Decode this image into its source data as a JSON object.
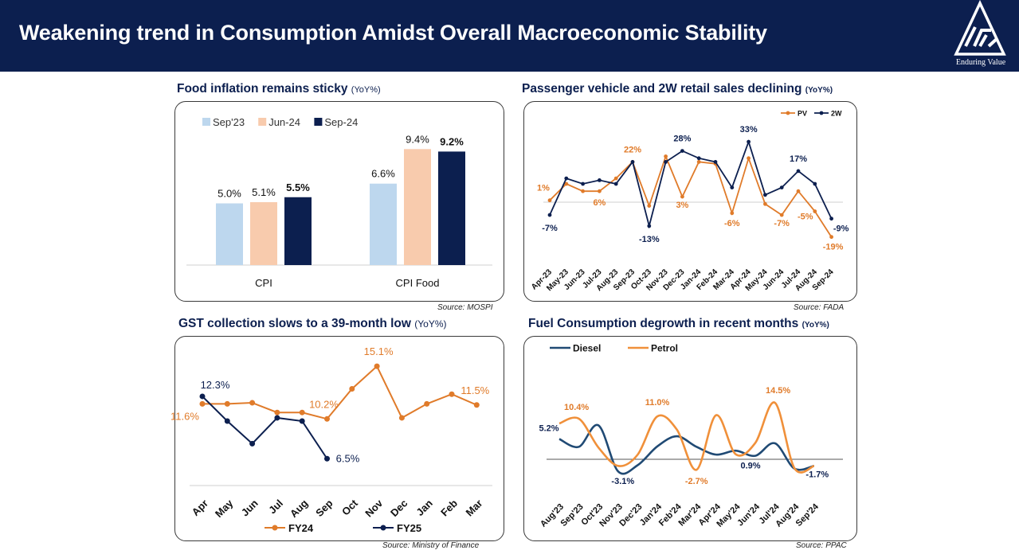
{
  "header": {
    "title": "Weakening trend in Consumption Amidst Overall Macroeconomic Stability",
    "logo_caption": "Enduring Value"
  },
  "colors": {
    "navy": "#0c1f4f",
    "orange": "#e07b2a",
    "light_blue": "#bdd7ee",
    "peach": "#f8cbad"
  },
  "panels": {
    "cpi": {
      "title": "Food inflation remains sticky",
      "subtitle": "(YoY%)",
      "source": "Source: MOSPI",
      "chart_data": {
        "type": "bar",
        "categories": [
          "CPI",
          "CPI Food"
        ],
        "series": [
          {
            "name": "Sep'23",
            "values": [
              5.0,
              6.6
            ],
            "labels": [
              "5.0%",
              "6.6%"
            ]
          },
          {
            "name": "Jun-24",
            "values": [
              5.1,
              9.4
            ],
            "labels": [
              "5.1%",
              "9.4%"
            ]
          },
          {
            "name": "Sep-24",
            "values": [
              5.5,
              9.2
            ],
            "labels": [
              "5.5%",
              "9.2%"
            ]
          }
        ],
        "ylim": [
          0,
          10
        ],
        "legend": "top-left",
        "grid": false
      }
    },
    "vehicle": {
      "title": "Passenger vehicle and 2W retail sales declining",
      "subtitle": "(YoY%)",
      "source": "Source: FADA",
      "chart_data": {
        "type": "line",
        "categories": [
          "Apr-23",
          "May-23",
          "Jun-23",
          "Jul-23",
          "Aug-23",
          "Sep-23",
          "Oct-23",
          "Nov-23",
          "Dec-23",
          "Jan-24",
          "Feb-24",
          "Mar-24",
          "Apr-24",
          "May-24",
          "Jun-24",
          "Jul-24",
          "Aug-24",
          "Sep-24"
        ],
        "series": [
          {
            "name": "PV",
            "values": [
              1,
              10,
              6,
              6,
              13,
              22,
              -2,
              25,
              3,
              22,
              21,
              -6,
              24,
              -1,
              -7,
              6,
              -5,
              -19
            ]
          },
          {
            "name": "2W",
            "values": [
              -7,
              13,
              10,
              12,
              10,
              22,
              -13,
              22,
              28,
              24,
              22,
              8,
              33,
              4,
              8,
              17,
              10,
              -9
            ]
          }
        ],
        "labels": [
          {
            "text": "1%",
            "series": "PV",
            "index": 0
          },
          {
            "text": "6%",
            "series": "PV",
            "index": 3
          },
          {
            "text": "22%",
            "series": "PV",
            "index": 5
          },
          {
            "text": "3%",
            "series": "PV",
            "index": 8
          },
          {
            "text": "-6%",
            "series": "PV",
            "index": 11
          },
          {
            "text": "-7%",
            "series": "PV",
            "index": 14
          },
          {
            "text": "-5%",
            "series": "PV",
            "index": 16
          },
          {
            "text": "-19%",
            "series": "PV",
            "index": 17
          },
          {
            "text": "-7%",
            "series": "2W",
            "index": 0
          },
          {
            "text": "-13%",
            "series": "2W",
            "index": 6
          },
          {
            "text": "28%",
            "series": "2W",
            "index": 8
          },
          {
            "text": "33%",
            "series": "2W",
            "index": 12
          },
          {
            "text": "17%",
            "series": "2W",
            "index": 15
          },
          {
            "text": "-9%",
            "series": "2W",
            "index": 17
          }
        ],
        "ylim": [
          -22,
          38
        ],
        "legend": "top-right",
        "grid": false
      }
    },
    "gst": {
      "title": "GST collection slows to a 39-month low",
      "subtitle": "(YoY%)",
      "source": "Source: Ministry of Finance",
      "chart_data": {
        "type": "line",
        "categories": [
          "Apr",
          "May",
          "Jun",
          "Jul",
          "Aug",
          "Sep",
          "Oct",
          "Nov",
          "Dec",
          "Jan",
          "Feb",
          "Mar"
        ],
        "series": [
          {
            "name": "FY24",
            "values": [
              11.6,
              11.6,
              11.7,
              10.8,
              10.8,
              10.2,
              13.0,
              15.1,
              10.3,
              11.6,
              12.5,
              11.5
            ]
          },
          {
            "name": "FY25",
            "values": [
              12.3,
              10.0,
              7.9,
              10.3,
              10.0,
              6.5
            ]
          }
        ],
        "labels": [
          {
            "text": "12.3%",
            "series": "FY25",
            "index": 0
          },
          {
            "text": "6.5%",
            "series": "FY25",
            "index": 5
          },
          {
            "text": "11.6%",
            "series": "FY24",
            "index": 0
          },
          {
            "text": "10.2%",
            "series": "FY24",
            "index": 5
          },
          {
            "text": "15.1%",
            "series": "FY24",
            "index": 7
          },
          {
            "text": "11.5%",
            "series": "FY24",
            "index": 11
          }
        ],
        "ylim": [
          4,
          16
        ],
        "legend": "bottom",
        "grid": false
      }
    },
    "fuel": {
      "title": "Fuel Consumption degrowth in recent months",
      "subtitle": "(YoY%)",
      "source": "Source: PPAC",
      "chart_data": {
        "type": "line",
        "categories": [
          "Aug'23",
          "Sep'23",
          "Oct'23",
          "Nov'23",
          "Dec'23",
          "Jan'24",
          "Feb'24",
          "Mar'24",
          "Apr'24",
          "May'24",
          "Jun'24",
          "Jul'24",
          "Aug'24",
          "Sep'24"
        ],
        "series": [
          {
            "name": "Diesel",
            "values": [
              5.2,
              3.2,
              8.7,
              -3.1,
              -1.5,
              3.3,
              5.9,
              3.2,
              1.2,
              2.2,
              0.9,
              4.1,
              -2.4,
              -1.7
            ]
          },
          {
            "name": "Petrol",
            "values": [
              9.2,
              10.4,
              3.0,
              -1.7,
              1.2,
              11.0,
              7.6,
              -2.7,
              11.3,
              1.3,
              4.2,
              14.5,
              -2.3,
              -1.7
            ]
          }
        ],
        "labels": [
          {
            "text": "5.2%",
            "series": "Diesel",
            "index": 0
          },
          {
            "text": "10.4%",
            "series": "Petrol",
            "index": 1
          },
          {
            "text": "-3.1%",
            "series": "Diesel",
            "index": 3
          },
          {
            "text": "11.0%",
            "series": "Petrol",
            "index": 5
          },
          {
            "text": "-2.7%",
            "series": "Petrol",
            "index": 7
          },
          {
            "text": "0.9%",
            "series": "Diesel",
            "index": 10
          },
          {
            "text": "14.5%",
            "series": "Petrol",
            "index": 11
          },
          {
            "text": "-1.7%",
            "series": "Diesel",
            "index": 13
          }
        ],
        "ylim": [
          -5,
          16
        ],
        "legend": "top-left",
        "grid": false
      }
    }
  }
}
